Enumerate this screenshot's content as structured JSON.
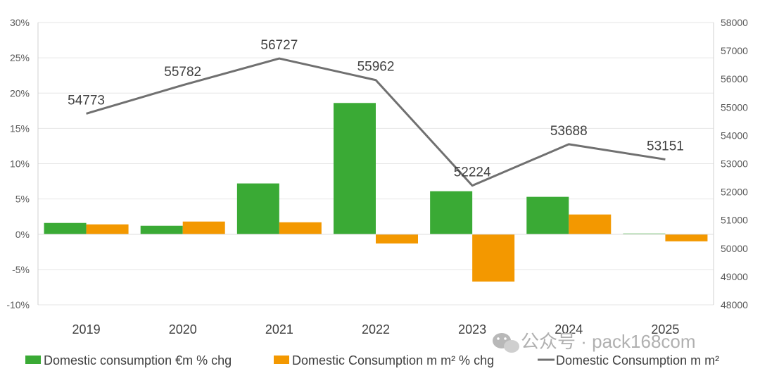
{
  "chart_data": {
    "type": "bar",
    "categories": [
      "2019",
      "2020",
      "2021",
      "2022",
      "2023",
      "2024",
      "2025"
    ],
    "series": [
      {
        "name": "Domestic consumption €m % chg",
        "type": "bar",
        "axis": "left",
        "color": "#3aaa35",
        "values": [
          1.6,
          1.2,
          7.2,
          18.6,
          6.1,
          5.3,
          0.1
        ]
      },
      {
        "name": "Domestic Consumption m m² % chg",
        "type": "bar",
        "axis": "left",
        "color": "#f39800",
        "values": [
          1.4,
          1.8,
          1.7,
          -1.3,
          -6.7,
          2.8,
          -1.0
        ]
      },
      {
        "name": "Domestic Consumption m m²",
        "type": "line",
        "axis": "right",
        "color": "#707070",
        "values": [
          54773,
          55782,
          56727,
          55962,
          52224,
          53688,
          53151
        ],
        "data_labels": [
          "54773",
          "55782",
          "56727",
          "55962",
          "52224",
          "53688",
          "53151"
        ]
      }
    ],
    "y_left": {
      "min": -10,
      "max": 30,
      "step": 5,
      "tick_labels": [
        "-10%",
        "-5%",
        "0%",
        "5%",
        "10%",
        "15%",
        "20%",
        "25%",
        "30%"
      ]
    },
    "y_right": {
      "min": 48000,
      "max": 58000,
      "step": 1000,
      "tick_labels": [
        "48000",
        "49000",
        "50000",
        "51000",
        "52000",
        "53000",
        "54000",
        "55000",
        "56000",
        "57000",
        "58000"
      ]
    },
    "grid": true,
    "legend_position": "bottom"
  },
  "watermark": {
    "text": "公众号 · pack168com",
    "icon": "wechat-icon"
  }
}
